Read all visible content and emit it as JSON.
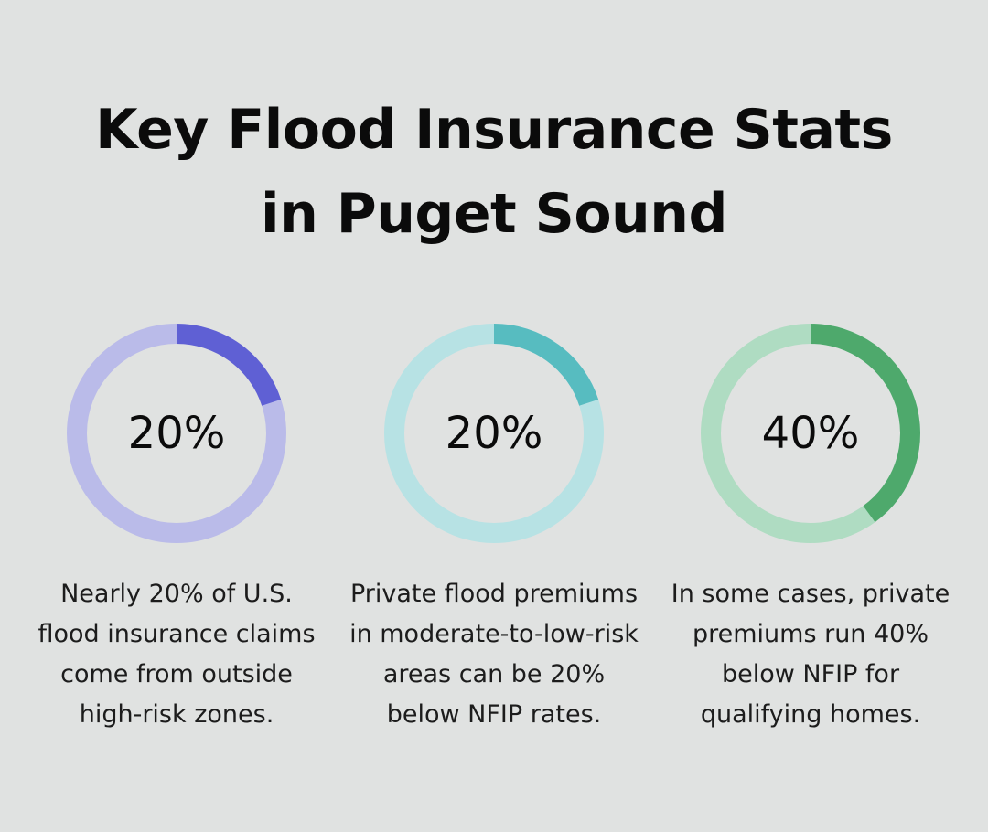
{
  "title_line1": "Key Flood Insurance Stats",
  "title_line2": "in Puget Sound",
  "chart_data": {
    "type": "pie",
    "items": [
      {
        "value": 20,
        "label": "20%",
        "description": "Nearly 20% of U.S. flood insurance claims come from outside high-risk zones.",
        "track_color": "#babbe9",
        "fill_color": "#5f60d4"
      },
      {
        "value": 20,
        "label": "20%",
        "description": "Private flood premiums in moderate-to-low-risk areas can be 20% below NFIP rates.",
        "track_color": "#b7e2e4",
        "fill_color": "#57bcc0"
      },
      {
        "value": 40,
        "label": "40%",
        "description": "In some cases, private premiums run 40% below NFIP for qualifying homes.",
        "track_color": "#afdcc2",
        "fill_color": "#4ea96c"
      }
    ]
  }
}
